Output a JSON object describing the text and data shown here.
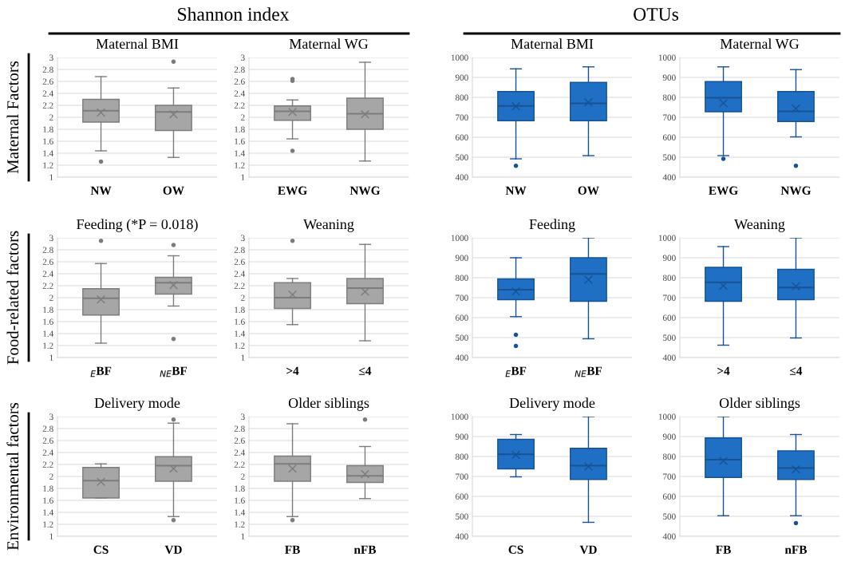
{
  "chart_data": [
    {
      "type": "box",
      "title": "Maternal BMI",
      "categories": [
        "NW",
        "OW"
      ],
      "color": "#a6a6a6",
      "marker": "cross",
      "grid": "y",
      "ylim": [
        1,
        3
      ],
      "yticks": [
        1,
        1.2,
        1.4,
        1.6,
        1.8,
        2,
        2.2,
        2.4,
        2.6,
        2.8,
        3
      ],
      "annotations": [
        "Shannon index",
        "Maternal Factors"
      ],
      "boxes": [
        {
          "low": 1.44,
          "q1": 1.92,
          "median": 2.11,
          "q3": 2.3,
          "high": 2.68,
          "mean": 2.08,
          "outliers": [
            1.26
          ]
        },
        {
          "low": 1.33,
          "q1": 1.78,
          "median": 2.09,
          "q3": 2.2,
          "high": 2.49,
          "mean": 2.05,
          "outliers": [
            2.93
          ]
        }
      ]
    },
    {
      "type": "box",
      "title": "Maternal WG",
      "categories": [
        "EWG",
        "NWG"
      ],
      "color": "#a6a6a6",
      "marker": "cross",
      "grid": "y",
      "ylim": [
        1,
        3
      ],
      "yticks": [
        1,
        1.2,
        1.4,
        1.6,
        1.8,
        2,
        2.2,
        2.4,
        2.6,
        2.8,
        3
      ],
      "boxes": [
        {
          "low": 1.64,
          "q1": 1.95,
          "median": 2.1,
          "q3": 2.19,
          "high": 2.29,
          "mean": 2.09,
          "outliers": [
            2.64,
            2.61,
            1.44
          ]
        },
        {
          "low": 1.27,
          "q1": 1.8,
          "median": 2.06,
          "q3": 2.32,
          "high": 2.92,
          "mean": 2.05
        }
      ]
    },
    {
      "type": "box",
      "title": "Maternal BMI",
      "categories": [
        "NW",
        "OW"
      ],
      "color": "#1f6fc5",
      "marker": "cross",
      "grid": "y",
      "ylim": [
        400,
        1000
      ],
      "yticks": [
        400,
        500,
        600,
        700,
        800,
        900,
        1000
      ],
      "annotations": [
        "OTUs"
      ],
      "boxes": [
        {
          "low": 492,
          "q1": 683,
          "median": 757,
          "q3": 829,
          "high": 943,
          "mean": 755,
          "outliers": [
            457
          ]
        },
        {
          "low": 508,
          "q1": 683,
          "median": 770,
          "q3": 875,
          "high": 953,
          "mean": 775
        }
      ]
    },
    {
      "type": "box",
      "title": "Maternal WG",
      "categories": [
        "EWG",
        "NWG"
      ],
      "color": "#1f6fc5",
      "marker": "cross",
      "grid": "y",
      "ylim": [
        400,
        1000
      ],
      "yticks": [
        400,
        500,
        600,
        700,
        800,
        900,
        1000
      ],
      "boxes": [
        {
          "low": 508,
          "q1": 728,
          "median": 798,
          "q3": 879,
          "high": 953,
          "mean": 771,
          "outliers": [
            492
          ]
        },
        {
          "low": 602,
          "q1": 679,
          "median": 730,
          "q3": 829,
          "high": 939,
          "mean": 744,
          "outliers": [
            457
          ]
        }
      ]
    },
    {
      "type": "box",
      "title": "Feeding (*P = 0.018)",
      "categories": [
        "$_{E}$BF",
        "$_{NE}$BF"
      ],
      "color": "#a6a6a6",
      "marker": "cross",
      "grid": "y",
      "ylim": [
        1,
        3
      ],
      "yticks": [
        1,
        1.2,
        1.4,
        1.6,
        1.8,
        2,
        2.2,
        2.4,
        2.6,
        2.8,
        3
      ],
      "annotations": [
        "Food-related factors"
      ],
      "boxes": [
        {
          "low": 1.24,
          "q1": 1.71,
          "median": 1.99,
          "q3": 2.15,
          "high": 2.57,
          "mean": 1.97,
          "outliers": [
            2.95
          ]
        },
        {
          "low": 1.86,
          "q1": 2.06,
          "median": 2.25,
          "q3": 2.34,
          "high": 2.7,
          "mean": 2.21,
          "outliers": [
            2.88,
            1.31
          ]
        }
      ]
    },
    {
      "type": "box",
      "title": "Weaning",
      "categories": [
        ">4",
        "≤4"
      ],
      "color": "#a6a6a6",
      "marker": "cross",
      "grid": "y",
      "ylim": [
        1,
        3
      ],
      "yticks": [
        1,
        1.2,
        1.4,
        1.6,
        1.8,
        2,
        2.2,
        2.4,
        2.6,
        2.8,
        3
      ],
      "boxes": [
        {
          "low": 1.55,
          "q1": 1.82,
          "median": 2.0,
          "q3": 2.25,
          "high": 2.32,
          "mean": 2.05,
          "outliers": [
            2.95
          ]
        },
        {
          "low": 1.28,
          "q1": 1.9,
          "median": 2.16,
          "q3": 2.32,
          "high": 2.89,
          "mean": 2.1
        }
      ]
    },
    {
      "type": "box",
      "title": "Feeding",
      "categories": [
        "$_{E}$BF",
        "$_{NE}$BF"
      ],
      "color": "#1f6fc5",
      "marker": "cross",
      "grid": "y",
      "ylim": [
        400,
        1000
      ],
      "yticks": [
        400,
        500,
        600,
        700,
        800,
        900,
        1000
      ],
      "boxes": [
        {
          "low": 605,
          "q1": 690,
          "median": 740,
          "q3": 794,
          "high": 900,
          "mean": 731,
          "outliers": [
            514,
            458
          ]
        },
        {
          "low": 494,
          "q1": 682,
          "median": 819,
          "q3": 900,
          "high": 1000,
          "mean": 790
        }
      ]
    },
    {
      "type": "box",
      "title": "Weaning",
      "categories": [
        ">4",
        "≤4"
      ],
      "color": "#1f6fc5",
      "marker": "cross",
      "grid": "y",
      "ylim": [
        400,
        1000
      ],
      "yticks": [
        400,
        500,
        600,
        700,
        800,
        900,
        1000
      ],
      "boxes": [
        {
          "low": 462,
          "q1": 682,
          "median": 777,
          "q3": 852,
          "high": 956,
          "mean": 760
        },
        {
          "low": 498,
          "q1": 690,
          "median": 751,
          "q3": 842,
          "high": 1000,
          "mean": 757
        }
      ]
    },
    {
      "type": "box",
      "title": "Delivery mode",
      "categories": [
        "CS",
        "VD"
      ],
      "color": "#a6a6a6",
      "marker": "cross",
      "grid": "y",
      "ylim": [
        1,
        3
      ],
      "yticks": [
        1,
        1.2,
        1.4,
        1.6,
        1.8,
        2,
        2.2,
        2.4,
        2.6,
        2.8,
        3
      ],
      "annotations": [
        "Environmental factors"
      ],
      "boxes": [
        {
          "low": 1.64,
          "q1": 1.64,
          "median": 1.93,
          "q3": 2.15,
          "high": 2.21,
          "mean": 1.91
        },
        {
          "low": 1.33,
          "q1": 1.92,
          "median": 2.18,
          "q3": 2.33,
          "high": 2.89,
          "mean": 2.13,
          "outliers": [
            2.95,
            1.27
          ]
        }
      ]
    },
    {
      "type": "box",
      "title": "Older siblings",
      "categories": [
        "FB",
        "nFB"
      ],
      "color": "#a6a6a6",
      "marker": "cross",
      "grid": "y",
      "ylim": [
        1,
        3
      ],
      "yticks": [
        1,
        1.2,
        1.4,
        1.6,
        1.8,
        2,
        2.2,
        2.4,
        2.6,
        2.8,
        3
      ],
      "boxes": [
        {
          "low": 1.33,
          "q1": 1.92,
          "median": 2.21,
          "q3": 2.34,
          "high": 2.88,
          "mean": 2.13,
          "outliers": [
            1.27
          ]
        },
        {
          "low": 1.63,
          "q1": 1.9,
          "median": 2.01,
          "q3": 2.18,
          "high": 2.5,
          "mean": 2.04,
          "outliers": [
            2.95
          ]
        }
      ]
    },
    {
      "type": "box",
      "title": "Delivery mode",
      "categories": [
        "CS",
        "VD"
      ],
      "color": "#1f6fc5",
      "marker": "cross",
      "grid": "y",
      "ylim": [
        400,
        1000
      ],
      "yticks": [
        400,
        500,
        600,
        700,
        800,
        900,
        1000
      ],
      "boxes": [
        {
          "low": 698,
          "q1": 738,
          "median": 811,
          "q3": 886,
          "high": 910,
          "mean": 808
        },
        {
          "low": 470,
          "q1": 685,
          "median": 754,
          "q3": 841,
          "high": 1000,
          "mean": 750
        }
      ]
    },
    {
      "type": "box",
      "title": "Older siblings",
      "categories": [
        "FB",
        "nFB"
      ],
      "color": "#1f6fc5",
      "marker": "cross",
      "grid": "y",
      "ylim": [
        400,
        1000
      ],
      "yticks": [
        400,
        500,
        600,
        700,
        800,
        900,
        1000
      ],
      "boxes": [
        {
          "low": 503,
          "q1": 695,
          "median": 784,
          "q3": 893,
          "high": 1000,
          "mean": 778
        },
        {
          "low": 503,
          "q1": 685,
          "median": 742,
          "q3": 828,
          "high": 910,
          "mean": 735,
          "outliers": [
            466
          ]
        }
      ]
    }
  ]
}
